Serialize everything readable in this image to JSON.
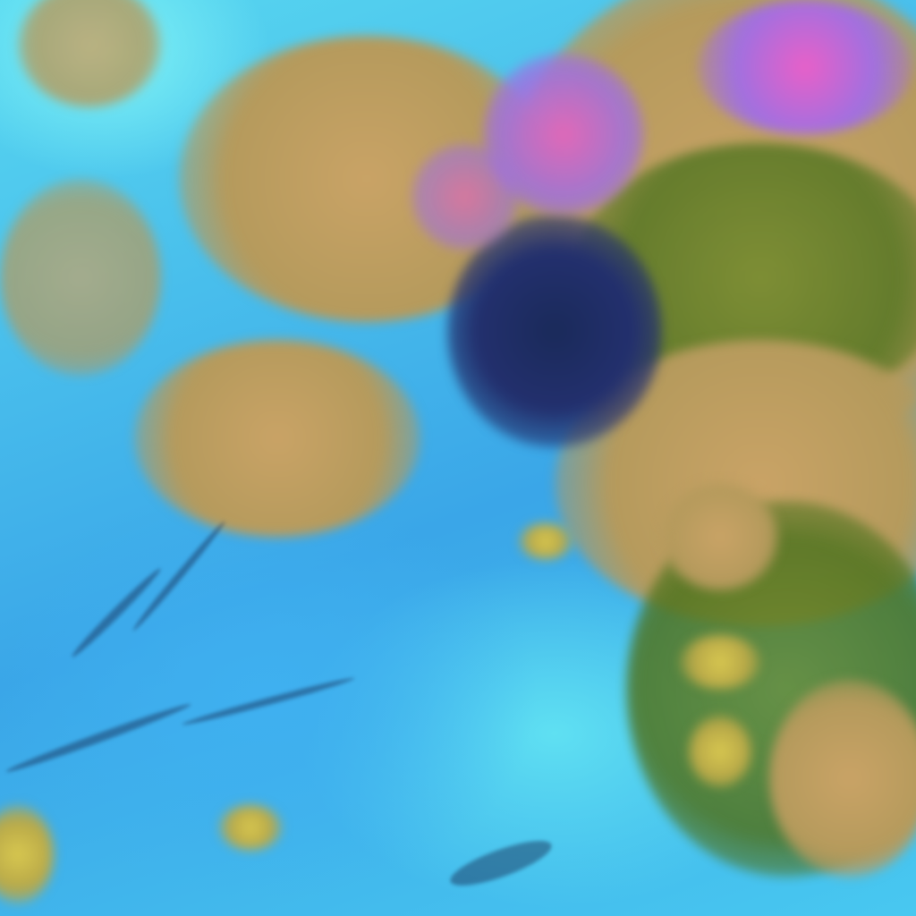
{
  "image": {
    "kind": "false-color satellite imagery",
    "colors": {
      "ocean_cloud": "#3ec8ee",
      "bright_cloud": "#7ff2f6",
      "land_tan": "#c9a366",
      "vegetation": "#4f7420",
      "deep_convection": "#23306e",
      "high_cloud_magenta": "#e860c8",
      "yellow_patch": "#d8c850"
    }
  }
}
